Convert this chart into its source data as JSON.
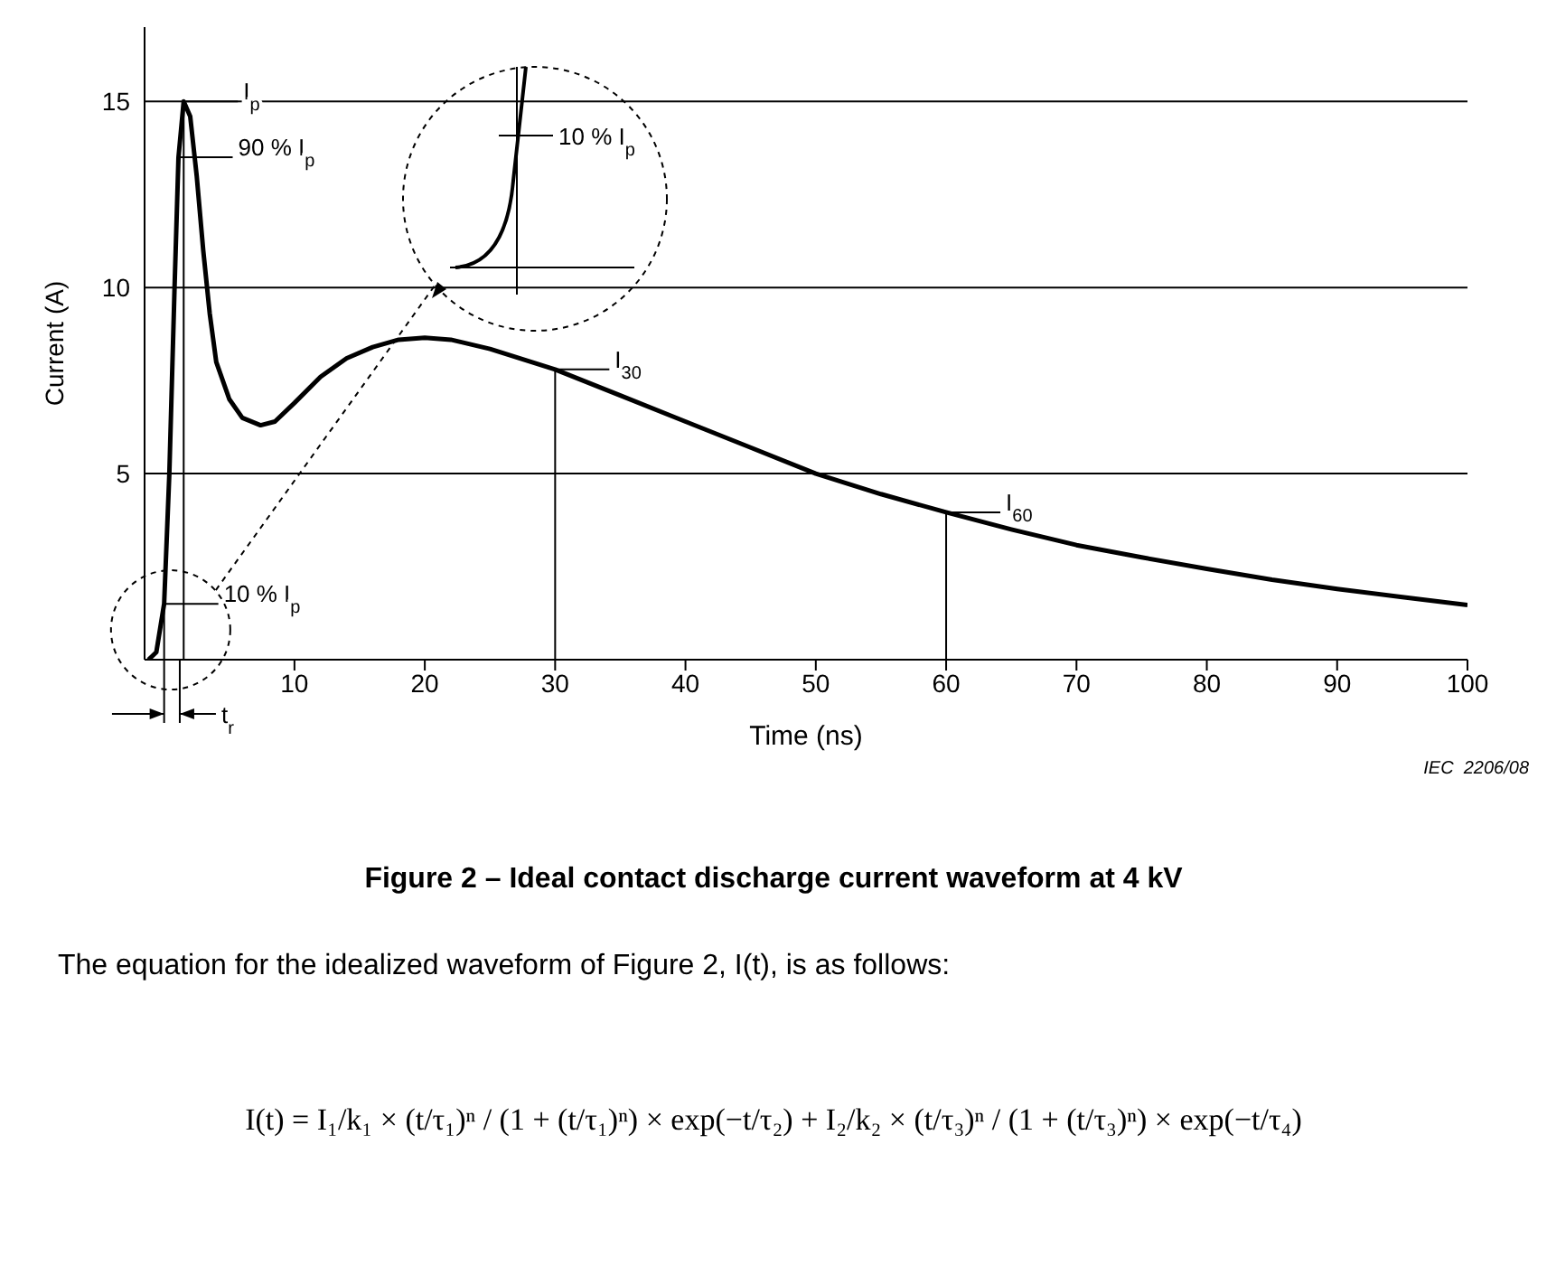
{
  "chart_data": {
    "type": "line",
    "title": "Figure 2 – Ideal contact discharge current waveform at 4 kV",
    "xlabel": "Time   (ns)",
    "ylabel": "Current   (A)",
    "x": [
      -1.2,
      -0.6,
      0,
      0.4,
      0.8,
      1.1,
      1.5,
      2,
      2.5,
      3,
      3.5,
      4,
      5,
      6,
      7.4,
      8.5,
      10,
      12,
      14,
      16,
      18,
      20,
      22,
      25,
      30,
      35,
      40,
      45,
      50,
      55,
      60,
      65,
      70,
      75,
      80,
      85,
      90,
      95,
      100
    ],
    "series": [
      {
        "color": "#000000",
        "values": [
          0,
          0.2,
          1.5,
          5,
          10,
          13.5,
          15,
          14.6,
          13,
          11,
          9.3,
          8,
          7,
          6.5,
          6.3,
          6.4,
          6.9,
          7.6,
          8.1,
          8.4,
          8.6,
          8.65,
          8.6,
          8.35,
          7.8,
          7.1,
          6.4,
          5.7,
          5.0,
          4.45,
          3.96,
          3.5,
          3.08,
          2.75,
          2.44,
          2.15,
          1.9,
          1.68,
          1.47
        ]
      }
    ],
    "xlim": [
      -1.5,
      100
    ],
    "xticks": [
      10,
      20,
      30,
      40,
      50,
      60,
      70,
      80,
      90,
      100
    ],
    "ylim": [
      0,
      17
    ],
    "yticks": [
      5,
      10,
      15
    ],
    "grid": "y",
    "legend": false,
    "marker": "none",
    "line_style": "solid",
    "annotations": [
      {
        "text": "I$_{p}$",
        "x": 1.5,
        "y": 15
      },
      {
        "text": "90 % I$_{p}$",
        "x": 1.1,
        "y": 13.5
      },
      {
        "text": "10 % I$_{p}$",
        "x": 0,
        "y": 1.5
      },
      {
        "text": "I$_{30}$",
        "x": 30,
        "y": 7.8
      },
      {
        "text": "I$_{60}$",
        "x": 60,
        "y": 3.96
      },
      "t$_{r}$",
      "10 % I$_{p}$",
      "IEC  2206/08",
      "The equation for the idealized waveform of Figure 2, I(t), is as follows:",
      "I(t) = I₁/k₁ × (t/τ₁)ⁿ / (1 + (t/τ₁)ⁿ) × exp(−t/τ₂) + I₂/k₂ × (t/τ₃)ⁿ / (1 + (t/τ₃)ⁿ) × exp(−t/τ₄)"
    ]
  }
}
